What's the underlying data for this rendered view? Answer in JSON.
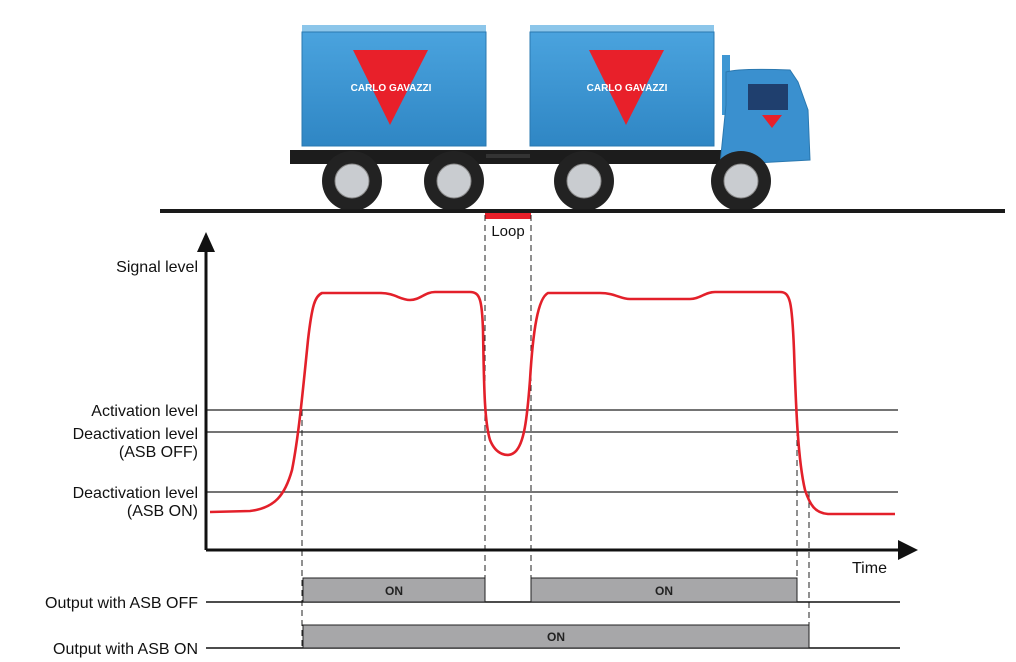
{
  "truck": {
    "brand": "CARLO GAVAZZI",
    "body_color": "#3f97d3",
    "logo_color": "#e8202a"
  },
  "loop": {
    "label": "Loop",
    "color": "#e8202a"
  },
  "axes": {
    "y_label": "Signal level",
    "x_label": "Time"
  },
  "levels": {
    "activation": "Activation level",
    "deactivation_off_line1": "Deactivation level",
    "deactivation_off_line2": "(ASB OFF)",
    "deactivation_on_line1": "Deactivation level",
    "deactivation_on_line2": "(ASB ON)"
  },
  "signal_color": "#e3202a",
  "outputs": {
    "asb_off": {
      "label": "Output with ASB OFF",
      "pulses": [
        "ON",
        "ON"
      ]
    },
    "asb_on": {
      "label": "Output with ASB ON",
      "pulses": [
        "ON"
      ]
    }
  }
}
